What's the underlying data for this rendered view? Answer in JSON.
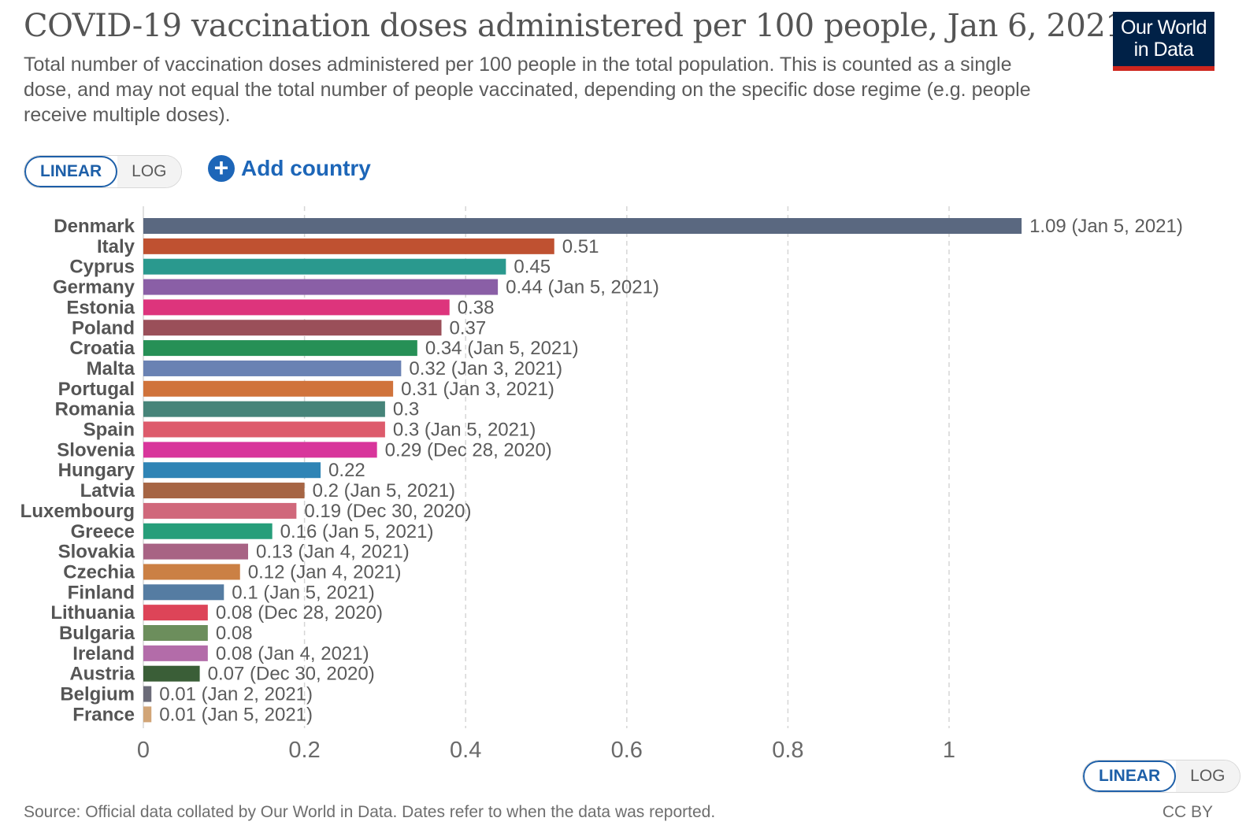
{
  "header": {
    "title": "COVID-19 vaccination doses administered per 100 people, Jan 6, 2021",
    "subtitle": "Total number of vaccination doses administered per 100 people in the total population. This is counted as a single dose, and may not equal the total number of people vaccinated, depending on the specific dose regime (e.g. people receive multiple doses).",
    "logo_line1": "Our World",
    "logo_line2": "in Data"
  },
  "controls": {
    "linear_label": "LINEAR",
    "log_label": "LOG",
    "add_country_label": "Add country",
    "add_icon": "plus-circle-icon"
  },
  "footer": {
    "source": "Source: Official data collated by Our World in Data. Dates refer to when the data was reported.",
    "license": "CC BY"
  },
  "colors": {
    "logo_bg": "#002147",
    "logo_accent": "#ce261e",
    "link": "#1d66b8"
  },
  "chart_data": {
    "type": "bar",
    "orientation": "horizontal",
    "title": "COVID-19 vaccination doses administered per 100 people, Jan 6, 2021",
    "xlim": [
      0,
      1.09
    ],
    "x_ticks": [
      "0",
      "0.2",
      "0.4",
      "0.6",
      "0.8",
      "1"
    ],
    "x_tick_values": [
      0,
      0.2,
      0.4,
      0.6,
      0.8,
      1
    ],
    "grid": "vertical dashed",
    "categories": [
      "Denmark",
      "Italy",
      "Cyprus",
      "Germany",
      "Estonia",
      "Poland",
      "Croatia",
      "Malta",
      "Portugal",
      "Romania",
      "Spain",
      "Slovenia",
      "Hungary",
      "Latvia",
      "Luxembourg",
      "Greece",
      "Slovakia",
      "Czechia",
      "Finland",
      "Lithuania",
      "Bulgaria",
      "Ireland",
      "Austria",
      "Belgium",
      "France"
    ],
    "values": [
      1.09,
      0.51,
      0.45,
      0.44,
      0.38,
      0.37,
      0.34,
      0.32,
      0.31,
      0.3,
      0.3,
      0.29,
      0.22,
      0.2,
      0.19,
      0.16,
      0.13,
      0.12,
      0.1,
      0.08,
      0.08,
      0.08,
      0.07,
      0.01,
      0.01
    ],
    "value_labels": [
      "1.09 (Jan 5, 2021)",
      "0.51",
      "0.45",
      "0.44 (Jan 5, 2021)",
      "0.38",
      "0.37",
      "0.34 (Jan 5, 2021)",
      "0.32 (Jan 3, 2021)",
      "0.31 (Jan 3, 2021)",
      "0.3",
      "0.3 (Jan 5, 2021)",
      "0.29 (Dec 28, 2020)",
      "0.22",
      "0.2 (Jan 5, 2021)",
      "0.19 (Dec 30, 2020)",
      "0.16 (Jan 5, 2021)",
      "0.13 (Jan 4, 2021)",
      "0.12 (Jan 4, 2021)",
      "0.1 (Jan 5, 2021)",
      "0.08 (Dec 28, 2020)",
      "0.08",
      "0.08 (Jan 4, 2021)",
      "0.07 (Dec 30, 2020)",
      "0.01 (Jan 2, 2021)",
      "0.01 (Jan 5, 2021)"
    ],
    "bar_colors": [
      "#5a6880",
      "#bf5131",
      "#2a998e",
      "#8a5fa6",
      "#dd347c",
      "#9a4f59",
      "#269056",
      "#6a82b3",
      "#d0733b",
      "#468479",
      "#dd5b6c",
      "#d8359b",
      "#2f84b5",
      "#a66544",
      "#d0687b",
      "#269e7a",
      "#a86384",
      "#cb8044",
      "#557ca2",
      "#dd4458",
      "#6c8e5c",
      "#b36ca9",
      "#3a5e37",
      "#6b6b78",
      "#d1a577"
    ]
  }
}
